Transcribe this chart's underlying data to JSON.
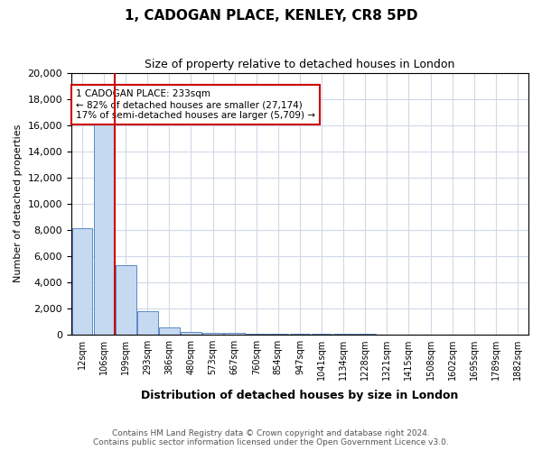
{
  "title": "1, CADOGAN PLACE, KENLEY, CR8 5PD",
  "subtitle": "Size of property relative to detached houses in London",
  "xlabel": "Distribution of detached houses by size in London",
  "ylabel": "Number of detached properties",
  "bin_labels": [
    "12sqm",
    "106sqm",
    "199sqm",
    "293sqm",
    "386sqm",
    "480sqm",
    "573sqm",
    "667sqm",
    "760sqm",
    "854sqm",
    "947sqm",
    "1041sqm",
    "1134sqm",
    "1228sqm",
    "1321sqm",
    "1415sqm",
    "1508sqm",
    "1602sqm",
    "1695sqm",
    "1789sqm",
    "1882sqm"
  ],
  "bar_heights": [
    8100,
    16600,
    5300,
    1750,
    500,
    200,
    120,
    80,
    50,
    30,
    10,
    5,
    3,
    2,
    1,
    1,
    0,
    0,
    0,
    0,
    0
  ],
  "bar_color": "#c5d9f1",
  "bar_edge_color": "#5a8ac6",
  "annotation_text": "1 CADOGAN PLACE: 233sqm\n← 82% of detached houses are smaller (27,174)\n17% of semi-detached houses are larger (5,709) →",
  "annotation_box_color": "#ffffff",
  "annotation_box_edge_color": "#cc0000",
  "red_line_color": "#cc0000",
  "ylim": [
    0,
    20000
  ],
  "yticks": [
    0,
    2000,
    4000,
    6000,
    8000,
    10000,
    12000,
    14000,
    16000,
    18000,
    20000
  ],
  "footnote": "Contains HM Land Registry data © Crown copyright and database right 2024.\nContains public sector information licensed under the Open Government Licence v3.0.",
  "bg_color": "#ffffff",
  "grid_color": "#d0d8e8"
}
